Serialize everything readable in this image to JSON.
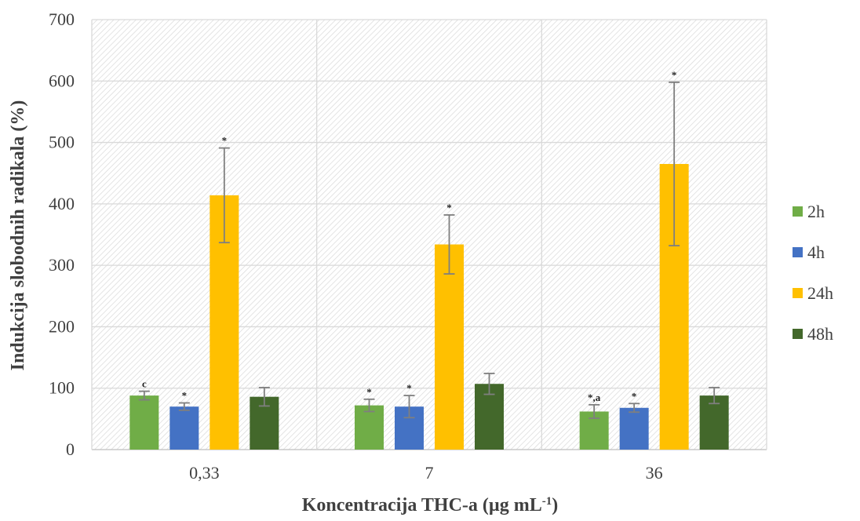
{
  "chart_data": {
    "type": "bar",
    "xlabel": "Koncentracija THC-a (µg mL",
    "xlabel_sup": "-1",
    "xlabel_suffix": ")",
    "ylabel": "Indukcija slobodnih radikala (%)",
    "ylim": [
      0,
      700
    ],
    "yticks": [
      0,
      100,
      200,
      300,
      400,
      500,
      600,
      700
    ],
    "categories": [
      "0,33",
      "7",
      "36"
    ],
    "grid": true,
    "legend_position": "right",
    "series": [
      {
        "name": "2h",
        "color": "#70AD47",
        "values": [
          88,
          72,
          62
        ],
        "errors": [
          7,
          10,
          11
        ],
        "annotations": [
          "c",
          "*",
          "*,a"
        ]
      },
      {
        "name": "4h",
        "color": "#4472C4",
        "values": [
          70,
          70,
          68
        ],
        "errors": [
          6,
          18,
          7
        ],
        "annotations": [
          "*",
          "*",
          "*"
        ]
      },
      {
        "name": "24h",
        "color": "#FFC000",
        "values": [
          414,
          334,
          465
        ],
        "errors": [
          77,
          48,
          133
        ],
        "annotations": [
          "*",
          "*",
          "*"
        ]
      },
      {
        "name": "48h",
        "color": "#43682B",
        "values": [
          86,
          107,
          88
        ],
        "errors": [
          15,
          17,
          13
        ],
        "annotations": [
          "",
          "",
          ""
        ]
      }
    ]
  }
}
